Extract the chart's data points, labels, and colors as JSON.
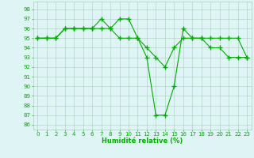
{
  "x": [
    0,
    1,
    2,
    3,
    4,
    5,
    6,
    7,
    8,
    9,
    10,
    11,
    12,
    13,
    14,
    15,
    16,
    17,
    18,
    19,
    20,
    21,
    22,
    23
  ],
  "line1": [
    95,
    95,
    95,
    96,
    96,
    96,
    96,
    97,
    96,
    97,
    97,
    95,
    93,
    87,
    87,
    90,
    96,
    95,
    95,
    95,
    95,
    95,
    95,
    93
  ],
  "line2": [
    95,
    95,
    95,
    96,
    96,
    96,
    96,
    96,
    96,
    95,
    95,
    95,
    94,
    93,
    92,
    94,
    95,
    95,
    95,
    94,
    94,
    93,
    93,
    93
  ],
  "xlim": [
    -0.5,
    23.5
  ],
  "ylim": [
    85.5,
    98.8
  ],
  "yticks": [
    86,
    87,
    88,
    89,
    90,
    91,
    92,
    93,
    94,
    95,
    96,
    97,
    98
  ],
  "xticks": [
    0,
    1,
    2,
    3,
    4,
    5,
    6,
    7,
    8,
    9,
    10,
    11,
    12,
    13,
    14,
    15,
    16,
    17,
    18,
    19,
    20,
    21,
    22,
    23
  ],
  "xlabel": "Humidité relative (%)",
  "line_color": "#00aa00",
  "bg_color": "#dff5f5",
  "grid_color": "#aaccbb",
  "marker": "+",
  "linewidth": 0.8,
  "markersize": 4,
  "tick_fontsize": 5.0,
  "xlabel_fontsize": 6.0
}
